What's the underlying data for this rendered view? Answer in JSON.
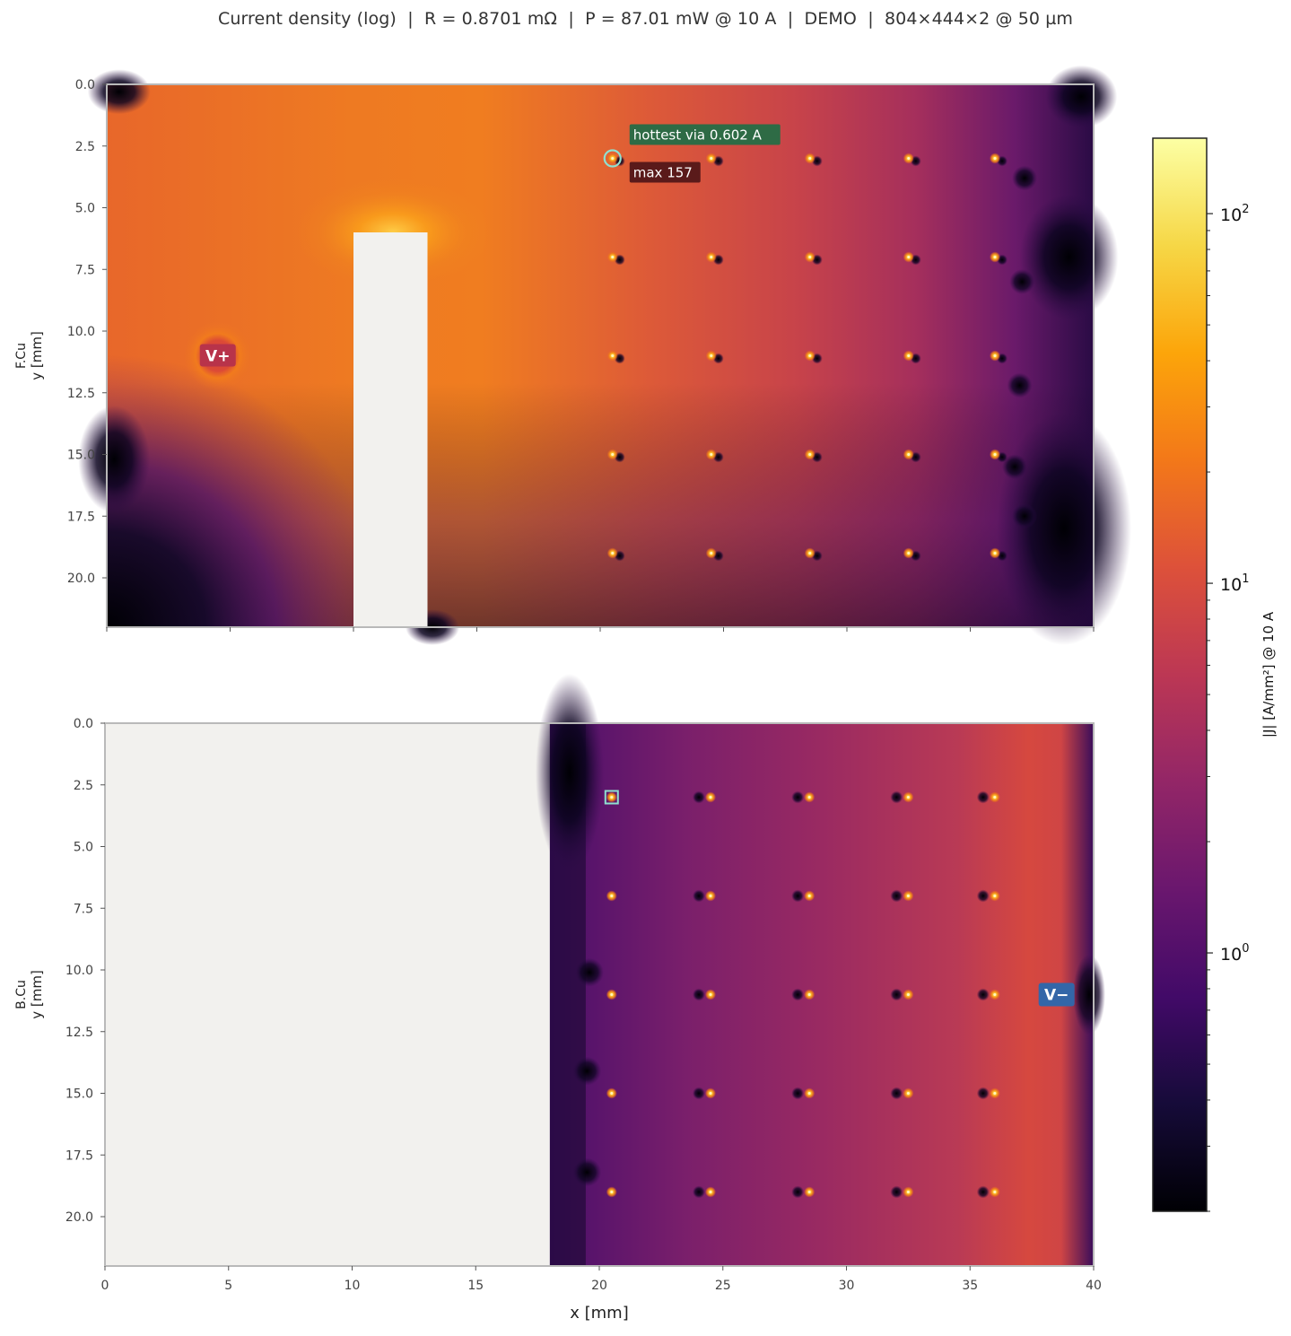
{
  "title": "Current density (log)  |  R = 0.8701 mΩ  |  P = 87.01 mW @ 10 A  |  DEMO  |  804×444×2 @ 50 µm",
  "chart_data": [
    {
      "type": "heatmap",
      "layer": "F.Cu",
      "ylabel_top": "F.Cu",
      "ylabel": "y [mm]",
      "xlim": [
        0,
        40
      ],
      "ylim": [
        22,
        0
      ],
      "yticks": [
        "0.0",
        "2.5",
        "5.0",
        "7.5",
        "10.0",
        "12.5",
        "15.0",
        "17.5",
        "20.0"
      ],
      "ytick_values": [
        0,
        2.5,
        5,
        7.5,
        10,
        12.5,
        15,
        17.5,
        20
      ],
      "xtick_values": [
        0,
        5,
        10,
        15,
        20,
        25,
        30,
        35,
        40
      ],
      "cutout": {
        "x": [
          10,
          13
        ],
        "y": [
          6,
          22
        ]
      },
      "source": {
        "label": "V+",
        "x": 4.5,
        "y": 11
      },
      "via_columns": [
        20.5,
        24.5,
        28.5,
        32.5,
        36
      ],
      "via_rows": [
        3,
        7,
        11,
        15,
        19
      ],
      "annotations": [
        {
          "text": "hottest via 0.602 A",
          "x": 20.5,
          "y": 3,
          "style": "green"
        },
        {
          "text": "max 157",
          "x": 20.5,
          "y": 3,
          "style": "dark-red"
        }
      ]
    },
    {
      "type": "heatmap",
      "layer": "B.Cu",
      "ylabel_top": "B.Cu",
      "ylabel": "y [mm]",
      "xlabel": "x [mm]",
      "xlim": [
        0,
        40
      ],
      "ylim": [
        22,
        0
      ],
      "yticks": [
        "0.0",
        "2.5",
        "5.0",
        "7.5",
        "10.0",
        "12.5",
        "15.0",
        "17.5",
        "20.0"
      ],
      "ytick_values": [
        0,
        2.5,
        5,
        7.5,
        10,
        12.5,
        15,
        17.5,
        20
      ],
      "xticks": [
        "0",
        "5",
        "10",
        "15",
        "20",
        "25",
        "30",
        "35",
        "40"
      ],
      "xtick_values": [
        0,
        5,
        10,
        15,
        20,
        25,
        30,
        35,
        40
      ],
      "copper_region": {
        "x": [
          18,
          40
        ],
        "y": [
          0,
          22
        ]
      },
      "sink": {
        "label": "V−",
        "x": 38.5,
        "y": 11
      },
      "via_columns": [
        20.5,
        24.5,
        28.5,
        32.5,
        36
      ],
      "via_rows": [
        3,
        7,
        11,
        15,
        19
      ],
      "marker": {
        "x": 20.5,
        "y": 3
      }
    }
  ],
  "colorbar": {
    "label": "|J| [A/mm²] @ 10 A",
    "scale": "log",
    "range": [
      0.2,
      160
    ],
    "colormap": "inferno",
    "ticks": [
      {
        "value": 100,
        "base": "10",
        "exp": "2"
      },
      {
        "value": 10,
        "base": "10",
        "exp": "1"
      },
      {
        "value": 1,
        "base": "10",
        "exp": "0"
      }
    ]
  },
  "colors": {
    "background": "#ffffff",
    "no_copper": "#f2f1ee",
    "vplus_badge": "#b8334a",
    "vminus_badge": "#3366a8",
    "green_badge": "#2e6b45",
    "maxlabel_badge": "#5a1a1a",
    "highlight": "#8fe0cf"
  }
}
